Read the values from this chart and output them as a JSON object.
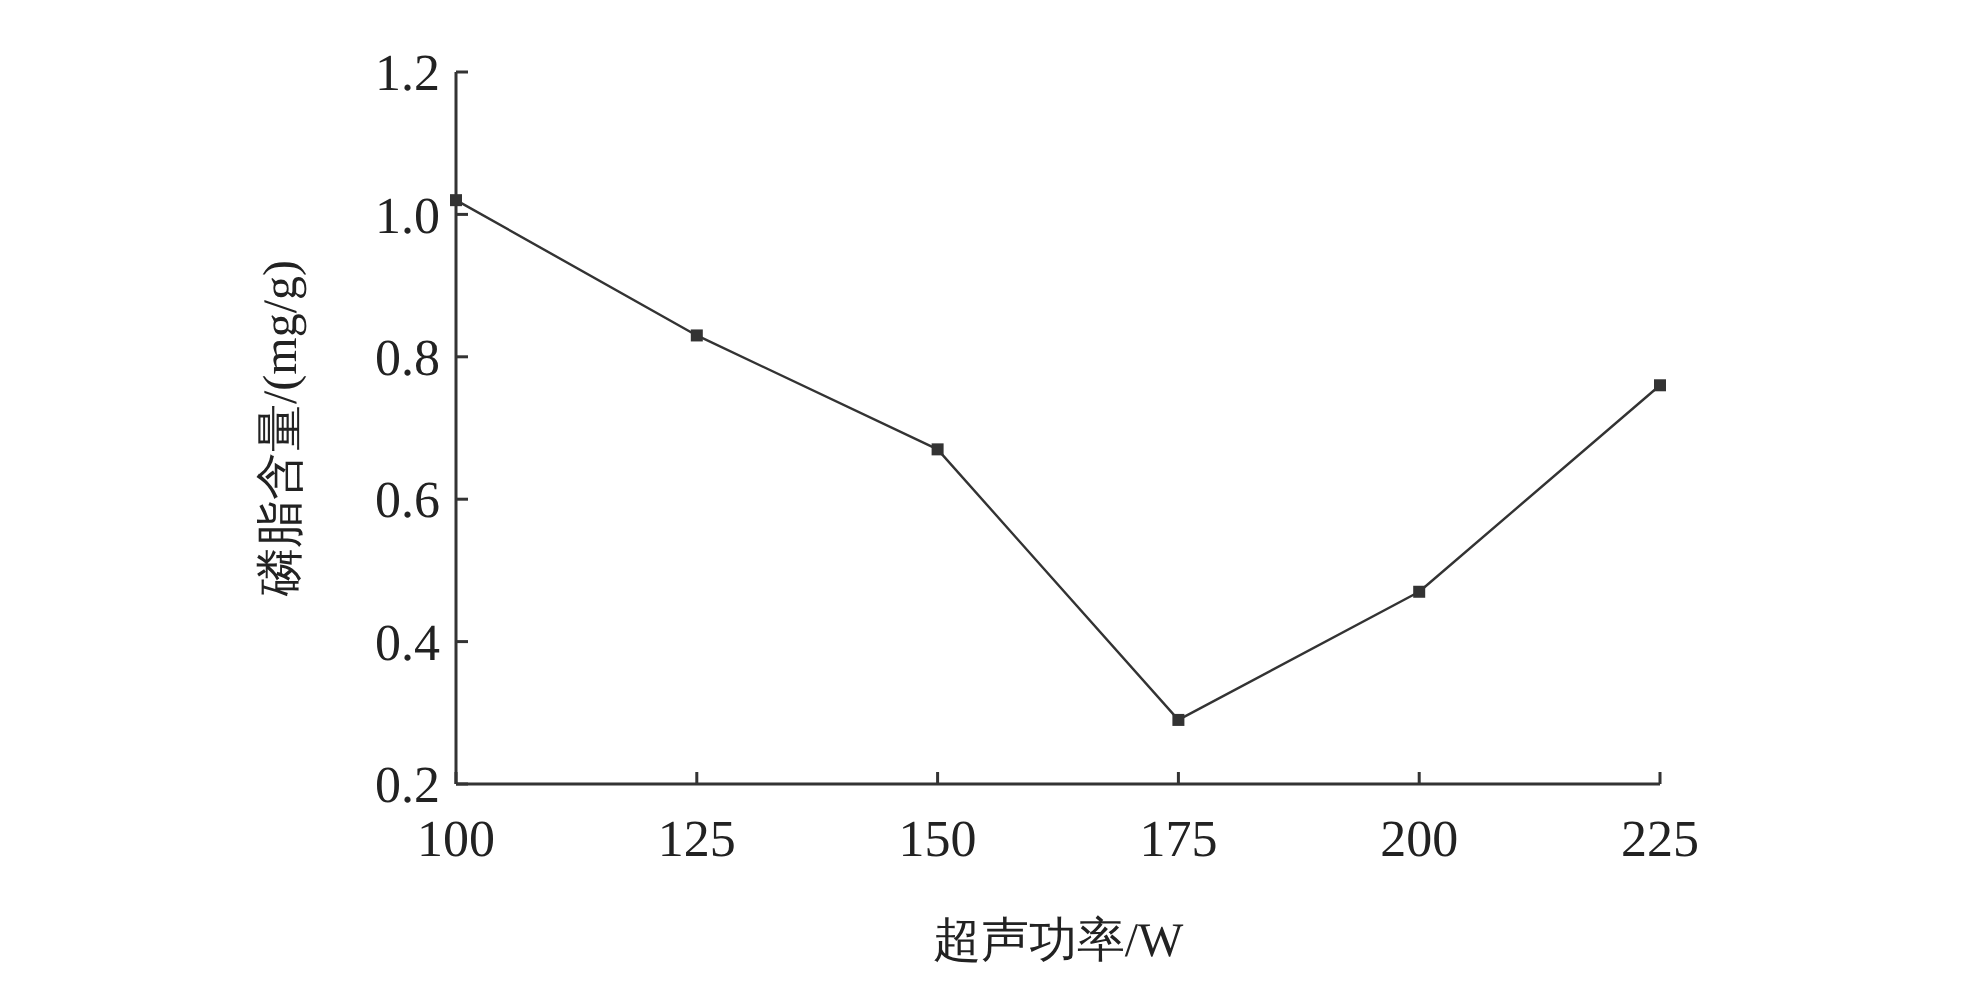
{
  "chart_data": {
    "type": "line",
    "xlabel": "超声功率/W",
    "ylabel": "磷脂含量/(mg/g)",
    "x": [
      100,
      125,
      150,
      175,
      200,
      225
    ],
    "series": [
      {
        "color": "#333333",
        "values": [
          1.02,
          0.83,
          0.67,
          0.29,
          0.47,
          0.76
        ]
      }
    ],
    "xlim": [
      100,
      225
    ],
    "xticks": [
      100,
      125,
      150,
      175,
      200,
      225
    ],
    "ylim": [
      0.2,
      1.2
    ],
    "yticks": [
      {
        "value": 0.2,
        "label": "0.2"
      },
      {
        "value": 0.4,
        "label": "0.4"
      },
      {
        "value": 0.6,
        "label": "0.6"
      },
      {
        "value": 0.8,
        "label": "0.8"
      },
      {
        "value": 1.0,
        "label": "1.0"
      },
      {
        "value": 1.2,
        "label": "1.2"
      }
    ],
    "marker": "square",
    "line_style": "solid",
    "grid": false
  }
}
